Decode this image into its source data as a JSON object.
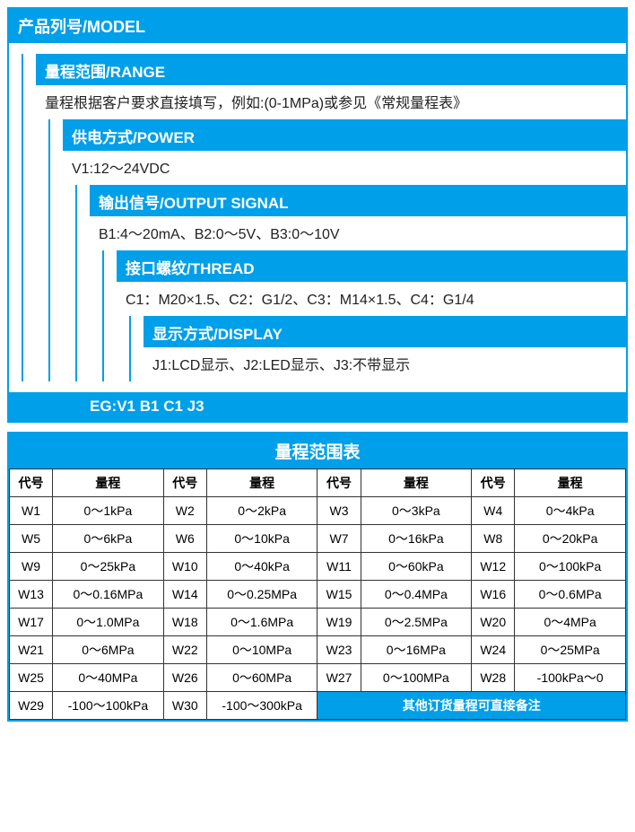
{
  "colors": {
    "accent": "#009fe9",
    "text": "#222222",
    "border": "#333333",
    "background": "#ffffff"
  },
  "model": {
    "title": "产品列号/MODEL",
    "nodes": [
      {
        "title": "量程范围/RANGE",
        "body": "量程根据客户要求直接填写，例如:(0-1MPa)或参见《常规量程表》"
      },
      {
        "title": "供电方式/POWER",
        "body": "V1:12～24VDC"
      },
      {
        "title": "输出信号/OUTPUT SIGNAL",
        "body": "B1:4～20mA、B2:0～5V、B3:0～10V"
      },
      {
        "title": "接口螺纹/THREAD",
        "body": "C1：M20×1.5、C2：G1/2、C3：M14×1.5、C4：G1/4"
      },
      {
        "title": "显示方式/DISPLAY",
        "body": "J1:LCD显示、J2:LED显示、J3:不带显示"
      }
    ],
    "example": "EG:V1 B1 C1 J3"
  },
  "rangeTable": {
    "title": "量程范围表",
    "head": {
      "code": "代号",
      "range": "量程"
    },
    "footer": "其他订货量程可直接备注",
    "rows": [
      [
        "W1",
        "0～1kPa",
        "W2",
        "0～2kPa",
        "W3",
        "0～3kPa",
        "W4",
        "0～4kPa"
      ],
      [
        "W5",
        "0～6kPa",
        "W6",
        "0～10kPa",
        "W7",
        "0～16kPa",
        "W8",
        "0～20kPa"
      ],
      [
        "W9",
        "0～25kPa",
        "W10",
        "0～40kPa",
        "W11",
        "0～60kPa",
        "W12",
        "0～100kPa"
      ],
      [
        "W13",
        "0～0.16MPa",
        "W14",
        "0～0.25MPa",
        "W15",
        "0～0.4MPa",
        "W16",
        "0～0.6MPa"
      ],
      [
        "W17",
        "0～1.0MPa",
        "W18",
        "0～1.6MPa",
        "W19",
        "0～2.5MPa",
        "W20",
        "0～4MPa"
      ],
      [
        "W21",
        "0～6MPa",
        "W22",
        "0～10MPa",
        "W23",
        "0～16MPa",
        "W24",
        "0～25MPa"
      ],
      [
        "W25",
        "0～40MPa",
        "W26",
        "0～60MPa",
        "W27",
        "0～100MPa",
        "W28",
        "-100kPa～0"
      ],
      [
        "W29",
        "-100～100kPa",
        "W30",
        "-100～300kPa"
      ]
    ]
  }
}
